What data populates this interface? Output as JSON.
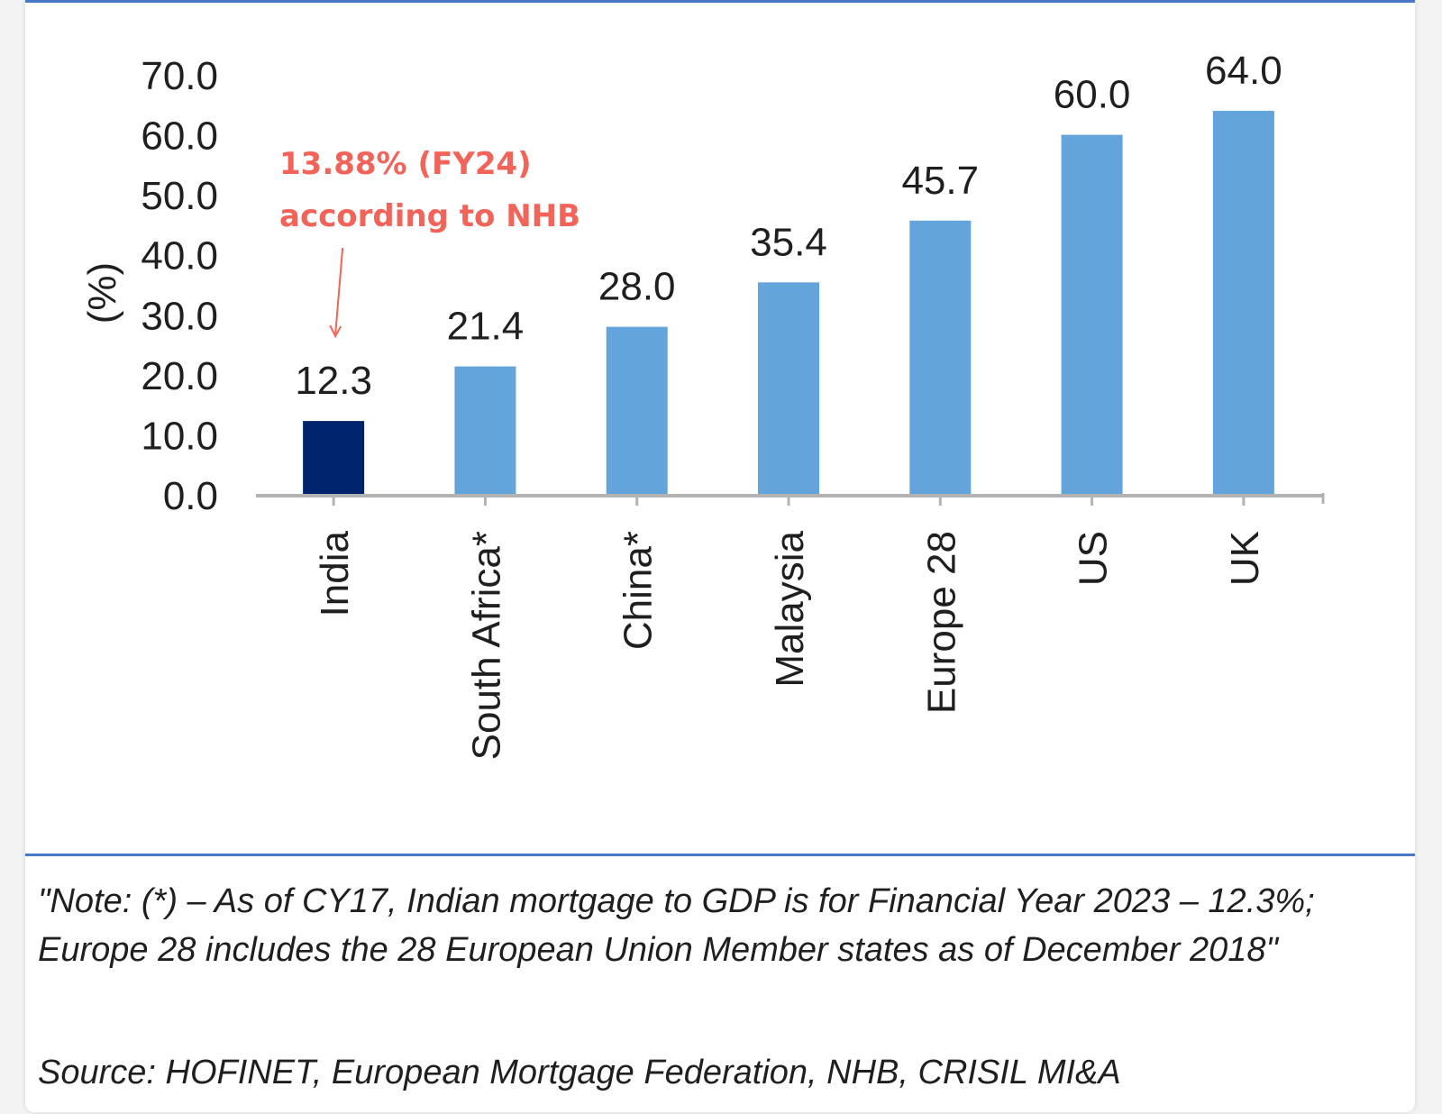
{
  "chart_data": {
    "type": "bar",
    "ylabel": "(%)",
    "xlabel": "",
    "ylim": [
      0,
      70
    ],
    "yticks": [
      "0.0",
      "10.0",
      "20.0",
      "30.0",
      "40.0",
      "50.0",
      "60.0",
      "70.0"
    ],
    "categories": [
      "India",
      "South Africa*",
      "China*",
      "Malaysia",
      "Europe 28",
      "US",
      "UK"
    ],
    "values": [
      12.3,
      21.4,
      28.0,
      35.4,
      45.7,
      60.0,
      64.0
    ],
    "value_labels": [
      "12.3",
      "21.4",
      "28.0",
      "35.4",
      "45.7",
      "60.0",
      "64.0"
    ],
    "colors": {
      "highlight": "#00246b",
      "default": "#63a4db",
      "axis": "#b3b3b3",
      "annotation": "#f2645a"
    },
    "highlight_category": "India",
    "annotation": {
      "line1": "13.88% (FY24)",
      "line2": "according to NHB",
      "target_category": "India"
    },
    "grid": false
  },
  "footer": {
    "note": "\"Note: (*) – As of CY17, Indian mortgage to GDP is for Financial Year 2023 – 12.3%; Europe 28 includes the 28 European Union Member states as of December 2018\"",
    "source": "Source: HOFINET, European Mortgage Federation, NHB, CRISIL MI&A"
  }
}
